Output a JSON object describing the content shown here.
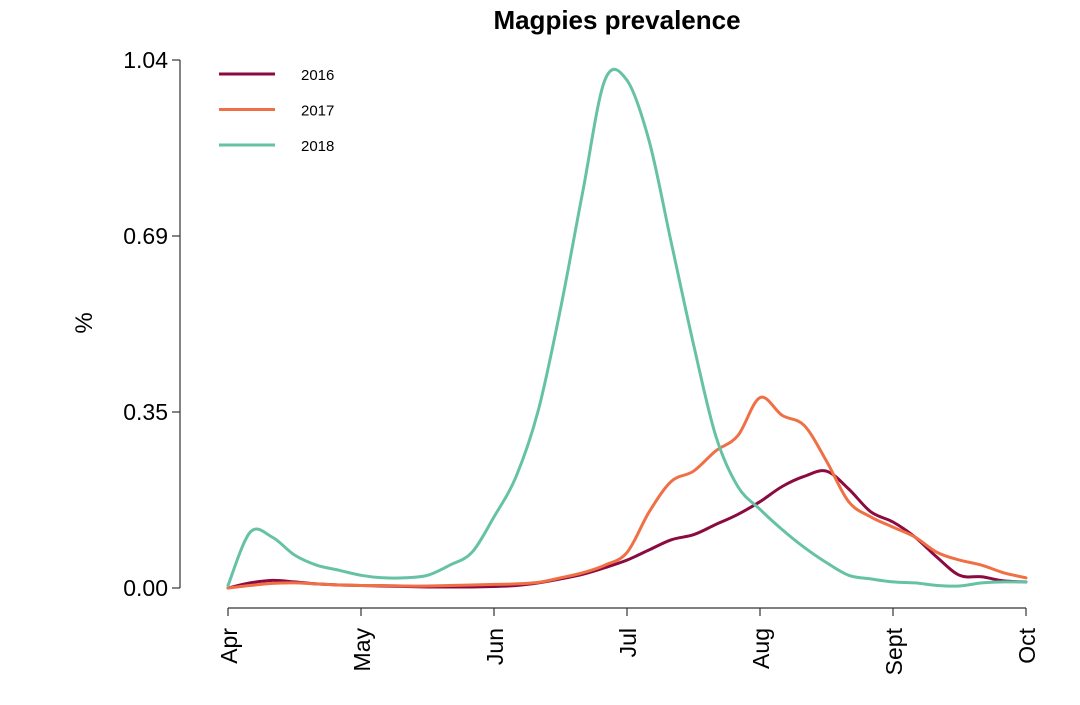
{
  "chart_data": {
    "type": "line",
    "title": "Magpies prevalence",
    "xlabel": "",
    "ylabel": "%",
    "x_ticks": [
      "Apr",
      "May",
      "Jun",
      "Jul",
      "Aug",
      "Sept",
      "Oct"
    ],
    "y_ticks": [
      "0.00",
      "0.35",
      "0.69",
      "1.04"
    ],
    "ylim": [
      0,
      1.04
    ],
    "grid": false,
    "legend_position": "top-left",
    "x": [
      "Apr 1",
      "Apr 6",
      "Apr 11",
      "Apr 16",
      "Apr 21",
      "Apr 26",
      "May 1",
      "May 6",
      "May 11",
      "May 16",
      "May 21",
      "May 26",
      "Jun 1",
      "Jun 6",
      "Jun 11",
      "Jun 16",
      "Jun 21",
      "Jun 26",
      "Jul 1",
      "Jul 6",
      "Jul 11",
      "Jul 16",
      "Jul 21",
      "Jul 26",
      "Aug 1",
      "Aug 6",
      "Aug 11",
      "Aug 16",
      "Aug 21",
      "Aug 26",
      "Sep 1",
      "Sep 6",
      "Sep 11",
      "Sep 16",
      "Sep 21",
      "Sep 26",
      "Sep 30"
    ],
    "series": [
      {
        "name": "2016",
        "color": "#8b0a3f",
        "values": [
          0.0,
          0.01,
          0.015,
          0.012,
          0.008,
          0.006,
          0.005,
          0.004,
          0.003,
          0.002,
          0.002,
          0.002,
          0.003,
          0.005,
          0.01,
          0.018,
          0.027,
          0.04,
          0.055,
          0.075,
          0.095,
          0.105,
          0.125,
          0.145,
          0.17,
          0.2,
          0.22,
          0.23,
          0.195,
          0.15,
          0.13,
          0.1,
          0.06,
          0.025,
          0.022,
          0.014,
          0.012
        ]
      },
      {
        "name": "2017",
        "color": "#f07046",
        "values": [
          0.0,
          0.005,
          0.009,
          0.01,
          0.008,
          0.006,
          0.005,
          0.005,
          0.004,
          0.004,
          0.005,
          0.006,
          0.007,
          0.008,
          0.011,
          0.02,
          0.03,
          0.045,
          0.07,
          0.15,
          0.21,
          0.23,
          0.27,
          0.3,
          0.375,
          0.34,
          0.32,
          0.25,
          0.17,
          0.14,
          0.12,
          0.1,
          0.07,
          0.055,
          0.045,
          0.03,
          0.02
        ]
      },
      {
        "name": "2018",
        "color": "#66c2a5",
        "values": [
          0.005,
          0.11,
          0.1,
          0.065,
          0.045,
          0.035,
          0.025,
          0.02,
          0.02,
          0.025,
          0.045,
          0.07,
          0.14,
          0.22,
          0.35,
          0.55,
          0.78,
          1.0,
          1.0,
          0.88,
          0.68,
          0.48,
          0.3,
          0.2,
          0.155,
          0.115,
          0.08,
          0.05,
          0.025,
          0.018,
          0.012,
          0.01,
          0.005,
          0.004,
          0.01,
          0.012,
          0.012
        ]
      }
    ]
  }
}
